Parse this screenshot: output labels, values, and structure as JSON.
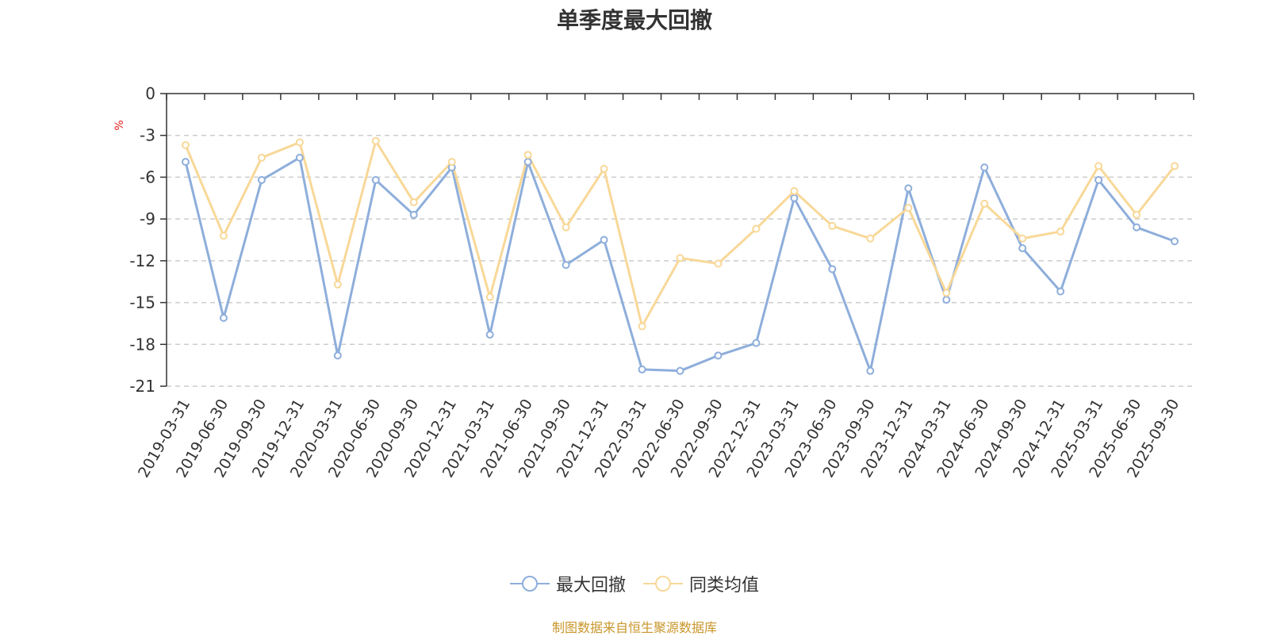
{
  "title": "单季度最大回撤",
  "footer": "制图数据来自恒生聚源数据库",
  "chart_data": {
    "type": "line",
    "title": "单季度最大回撤",
    "ylabel": "%",
    "ylim": [
      -21,
      0
    ],
    "yticks": [
      0,
      -3,
      -6,
      -9,
      -12,
      -15,
      -18,
      -21
    ],
    "grid": true,
    "legend_position": "bottom",
    "categories": [
      "2019-03-31",
      "2019-06-30",
      "2019-09-30",
      "2019-12-31",
      "2020-03-31",
      "2020-06-30",
      "2020-09-30",
      "2020-12-31",
      "2021-03-31",
      "2021-06-30",
      "2021-09-30",
      "2021-12-31",
      "2022-03-31",
      "2022-06-30",
      "2022-09-30",
      "2022-12-31",
      "2023-03-31",
      "2023-06-30",
      "2023-09-30",
      "2023-12-31",
      "2024-03-31",
      "2024-06-30",
      "2024-09-30",
      "2024-12-31",
      "2025-03-31",
      "2025-06-30",
      "2025-09-30"
    ],
    "series": [
      {
        "name": "最大回撤",
        "color": "#8eaedb",
        "values": [
          -4.9,
          -16.1,
          -6.2,
          -4.6,
          -18.8,
          -6.2,
          -8.7,
          -5.3,
          -17.3,
          -4.9,
          -12.3,
          -10.5,
          -19.8,
          -19.9,
          -18.8,
          -17.9,
          -7.5,
          -12.6,
          -19.9,
          -6.8,
          -14.8,
          -5.3,
          -11.1,
          -14.2,
          -6.2,
          -9.6,
          -10.6
        ]
      },
      {
        "name": "同类均值",
        "color": "#f8d898",
        "values": [
          -3.7,
          -10.2,
          -4.6,
          -3.5,
          -13.7,
          -3.4,
          -7.8,
          -4.9,
          -14.6,
          -4.4,
          -9.6,
          -5.4,
          -16.7,
          -11.8,
          -12.2,
          -9.7,
          -7.0,
          -9.5,
          -10.4,
          -8.2,
          -14.3,
          -7.9,
          -10.4,
          -9.9,
          -5.2,
          -8.7,
          -5.2
        ]
      }
    ]
  }
}
